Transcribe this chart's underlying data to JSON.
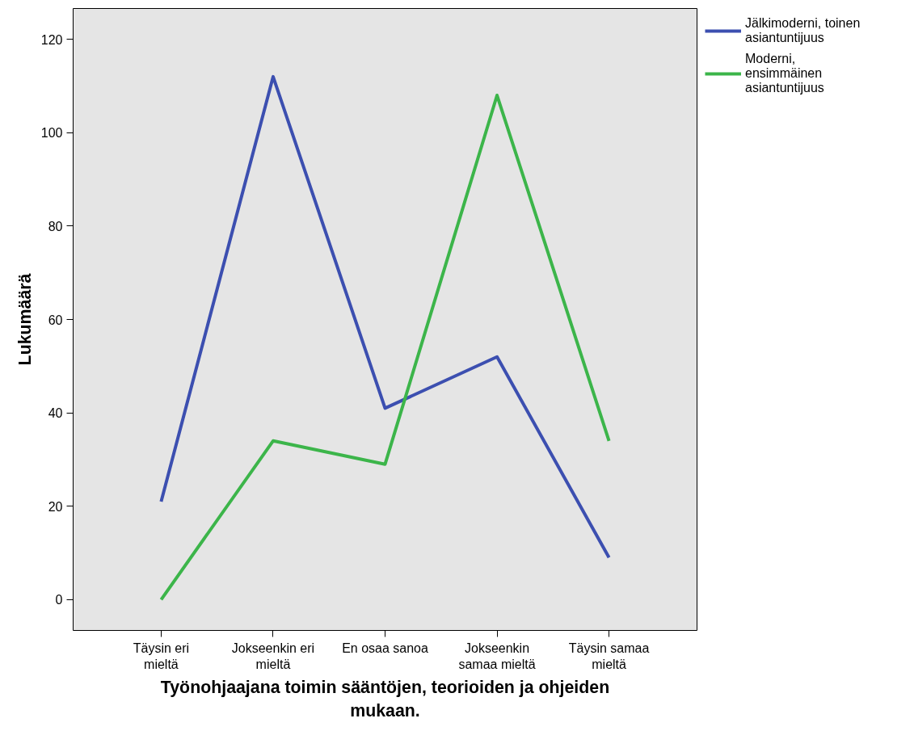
{
  "chart_data": {
    "type": "line",
    "xlabel": "Työnohjaajana toimin sääntöjen, teorioiden ja ohjeiden\nmukaan.",
    "ylabel": "Lukumäärä",
    "categories": [
      "Täysin eri\nmieltä",
      "Jokseenkin eri\nmieltä",
      "En osaa sanoa",
      "Jokseenkin\nsamaa mieltä",
      "Täysin samaa\nmieltä"
    ],
    "series": [
      {
        "name": "Jälkimoderni, toinen\nasiantuntijuus",
        "color": "#3c4fb0",
        "values": [
          21,
          112,
          41,
          52,
          9
        ]
      },
      {
        "name": "Moderni,\nensimmäinen\nasiantuntijuus",
        "color": "#3cb54a",
        "values": [
          0,
          34,
          29,
          108,
          34
        ]
      }
    ],
    "ylim": [
      -6.6,
      126.6
    ],
    "yticks": [
      0,
      20,
      40,
      60,
      80,
      100,
      120
    ],
    "grid": false,
    "legend": "right",
    "marker": "none",
    "line_style": "solid"
  }
}
